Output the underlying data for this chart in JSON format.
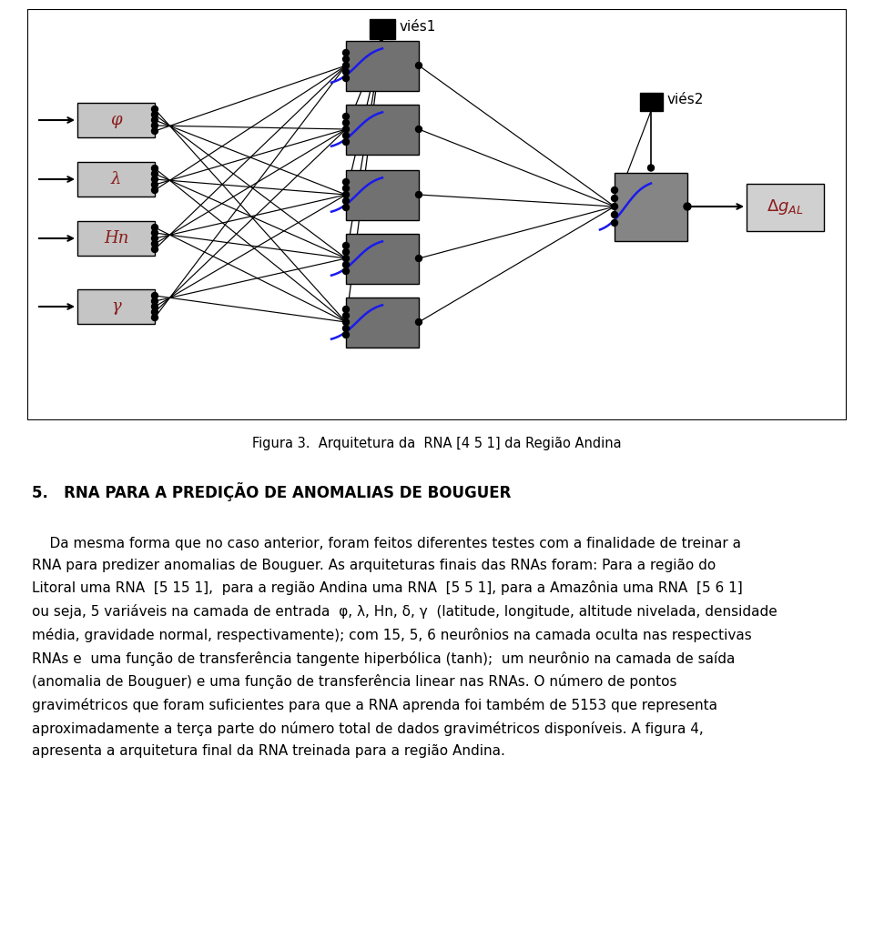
{
  "fig_width": 9.6,
  "fig_height": 10.31,
  "bg_color": "#ffffff",
  "caption": "Figura 3.  Arquitetura da  RNA [4 5 1] da Região Andina",
  "section_title": "5.   RNA PARA A PREDIÇÃO DE ANOMALIAS DE BOUGUER",
  "paragraph": "    Da mesma forma que no caso anterior, foram feitos diferentes testes com a finalidade de treinar a\nRNA para predizer anomalias de Bouguer. As arquiteturas finais das RNAs foram: Para a região do\nLitoral uma RNA  [5 15 1],  para a região Andina uma RNA  [5 5 1], para a Amazônia uma RNA  [5 6 1]\nou seja, 5 variáveis na camada de entrada  φ, λ, Hn, δ, γ  (latitude, longitude, altitude nivelada, densidade\nmédia, gravidade normal, respectivamente); com 15, 5, 6 neurônios na camada oculta nas respectivas\nRNAs e  uma função de transferência tangente hiperbólica (tanh);  um neurônio na camada de saída\n(anomalia de Bouguer) e uma função de transferência linear nas RNAs. O número de pontos\ngravimétricos que foram suficientes para que a RNA aprenda foi também de 5153 que representa\naproximadamente a terça parte do número total de dados gravimétricos disponíveis. A figura 4,\napresenta a arquitetura final da RNA treinada para a região Andina.",
  "input_label_color": "#8b1a1a",
  "sigmoid_color": "#1a1aee"
}
